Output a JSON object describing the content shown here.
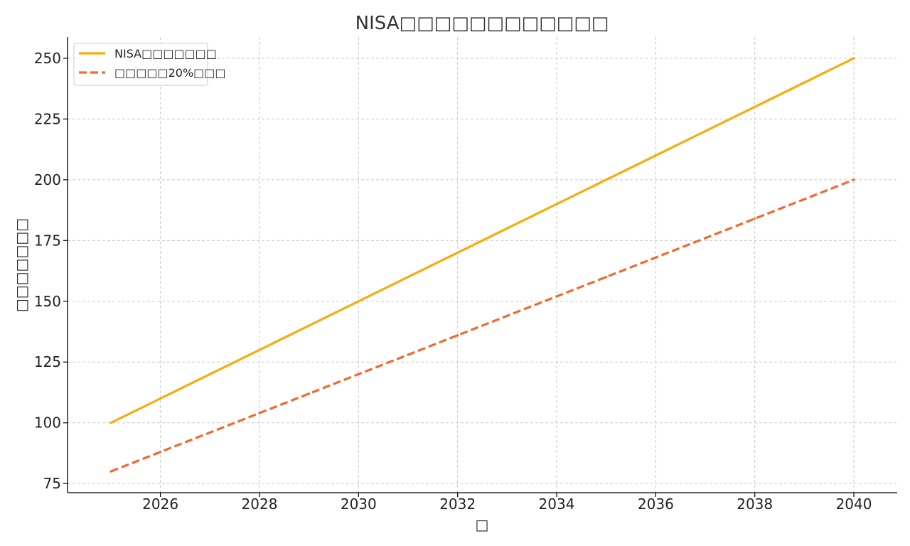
{
  "chart_data": {
    "type": "line",
    "title": "NISA□□□□□□□□□□□□",
    "xlabel": "□",
    "ylabel": "□□□□□□□",
    "x": [
      2025,
      2026,
      2027,
      2028,
      2029,
      2030,
      2031,
      2032,
      2033,
      2034,
      2035,
      2036,
      2037,
      2038,
      2039,
      2040
    ],
    "series": [
      {
        "name": "NISA□□□□□□□",
        "values": [
          100,
          110,
          120,
          130,
          140,
          150,
          160,
          170,
          180,
          190,
          200,
          210,
          220,
          230,
          240,
          250
        ],
        "color": "#f9ab0c",
        "style": "solid"
      },
      {
        "name": "□□□□□20%□□□",
        "values": [
          80,
          88,
          96,
          104,
          112,
          120,
          128,
          136,
          144,
          152,
          160,
          168,
          176,
          184,
          192,
          200
        ],
        "color": "#f2692d",
        "style": "dashed"
      }
    ],
    "xticks": [
      2026,
      2028,
      2030,
      2032,
      2034,
      2036,
      2038,
      2040
    ],
    "yticks": [
      75,
      100,
      125,
      150,
      175,
      200,
      225,
      250
    ],
    "xlim": [
      2024.125,
      2040.875
    ],
    "ylim": [
      71.25,
      258.75
    ],
    "grid": true,
    "legend_position": "top-left"
  }
}
